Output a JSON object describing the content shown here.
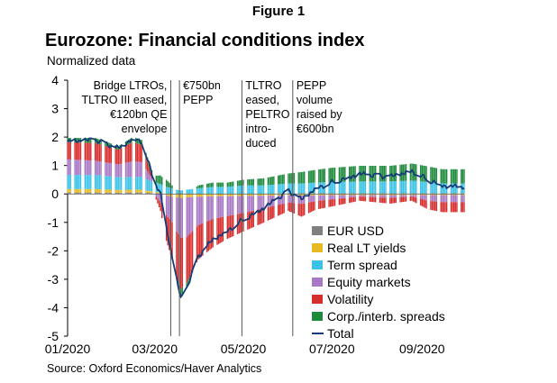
{
  "figure_label": "Figure 1",
  "title": "Eurozone: Financial conditions index",
  "unit_label": "Normalized data",
  "source": "Source: Oxford Economics/Haver Analytics",
  "chart_data": {
    "type": "bar",
    "stacked": true,
    "title": "Eurozone: Financial conditions index",
    "ylabel": "Normalized data",
    "ylim": [
      -5,
      4
    ],
    "yticks": [
      -5,
      -4,
      -3,
      -2,
      -1,
      0,
      1,
      2,
      3,
      4
    ],
    "xlim": [
      "2020-01-01",
      "2020-09-30"
    ],
    "xticks": [
      {
        "date": "2020-01-01",
        "label": "01/2020"
      },
      {
        "date": "2020-03-01",
        "label": "03/2020"
      },
      {
        "date": "2020-05-01",
        "label": "05/2020"
      },
      {
        "date": "2020-07-01",
        "label": "07/2020"
      },
      {
        "date": "2020-09-01",
        "label": "09/2020"
      }
    ],
    "legend_position": "bottom-right",
    "annotations": [
      {
        "date": "2020-03-12",
        "lines": [
          "Bridge LTROs,",
          "TLTRO III  eased,",
          "€120bn QE",
          "envelope"
        ],
        "align": "right"
      },
      {
        "date": "2020-03-18",
        "lines": [
          "€750bn",
          "PEPP"
        ],
        "align": "left"
      },
      {
        "date": "2020-04-30",
        "lines": [
          "TLTRO",
          "eased,",
          "PELTRO",
          "intro-",
          "duced"
        ],
        "align": "left"
      },
      {
        "date": "2020-06-04",
        "lines": [
          "PEPP",
          "volume",
          "raised by",
          "€600bn"
        ],
        "align": "left"
      }
    ],
    "components": [
      {
        "name": "EUR USD",
        "color": "#7f7f7f"
      },
      {
        "name": "Real LT yields",
        "color": "#e8b820"
      },
      {
        "name": "Term spread",
        "color": "#3cc2e6"
      },
      {
        "name": "Equity markets",
        "color": "#a778c4"
      },
      {
        "name": "Volatility",
        "color": "#d62d2d"
      },
      {
        "name": "Corp./interb. spreads",
        "color": "#1e8a3c"
      }
    ],
    "total": {
      "name": "Total",
      "color": "#163c78"
    },
    "anchors": [
      {
        "date": "2020-01-01",
        "eur": 0.05,
        "yield": 0.12,
        "term": 0.5,
        "equity": 0.55,
        "vol": 0.6,
        "spreads": 0.15,
        "total": 1.85
      },
      {
        "date": "2020-01-20",
        "eur": 0.05,
        "yield": 0.12,
        "term": 0.5,
        "equity": 0.5,
        "vol": 0.62,
        "spreads": 0.18,
        "total": 1.9
      },
      {
        "date": "2020-02-05",
        "eur": 0.04,
        "yield": 0.1,
        "term": 0.45,
        "equity": 0.45,
        "vol": 0.52,
        "spreads": 0.12,
        "total": 1.6
      },
      {
        "date": "2020-02-15",
        "eur": 0.05,
        "yield": 0.1,
        "term": 0.45,
        "equity": 0.55,
        "vol": 0.68,
        "spreads": 0.18,
        "total": 1.95
      },
      {
        "date": "2020-02-21",
        "eur": 0.05,
        "yield": 0.1,
        "term": 0.45,
        "equity": 0.52,
        "vol": 0.6,
        "spreads": 0.18,
        "total": 1.85
      },
      {
        "date": "2020-02-28",
        "eur": 0.03,
        "yield": 0.06,
        "term": 0.35,
        "equity": 0.1,
        "vol": 0.1,
        "spreads": 0.2,
        "total": 0.7
      },
      {
        "date": "2020-03-05",
        "eur": 0.02,
        "yield": 0.03,
        "term": 0.3,
        "equity": -0.3,
        "vol": -0.3,
        "spreads": 0.3,
        "total": 0.0
      },
      {
        "date": "2020-03-09",
        "eur": 0.0,
        "yield": -0.05,
        "term": 0.25,
        "equity": -0.7,
        "vol": -0.9,
        "spreads": 0.25,
        "total": -1.2
      },
      {
        "date": "2020-03-13",
        "eur": 0.0,
        "yield": -0.1,
        "term": 0.2,
        "equity": -0.9,
        "vol": -1.3,
        "spreads": 0.1,
        "total": -2.2
      },
      {
        "date": "2020-03-16",
        "eur": 0.0,
        "yield": -0.12,
        "term": 0.15,
        "equity": -1.2,
        "vol": -1.6,
        "spreads": 0.0,
        "total": -3.0
      },
      {
        "date": "2020-03-19",
        "eur": 0.0,
        "yield": -0.14,
        "term": 0.12,
        "equity": -1.4,
        "vol": -1.8,
        "spreads": -0.3,
        "total": -3.7
      },
      {
        "date": "2020-03-23",
        "eur": 0.0,
        "yield": -0.12,
        "term": 0.15,
        "equity": -1.4,
        "vol": -1.6,
        "spreads": -0.2,
        "total": -3.3
      },
      {
        "date": "2020-03-31",
        "eur": 0.0,
        "yield": -0.1,
        "term": 0.2,
        "equity": -1.0,
        "vol": -1.2,
        "spreads": 0.1,
        "total": -2.2
      },
      {
        "date": "2020-04-10",
        "eur": 0.0,
        "yield": -0.08,
        "term": 0.25,
        "equity": -0.8,
        "vol": -1.0,
        "spreads": 0.15,
        "total": -1.6
      },
      {
        "date": "2020-04-20",
        "eur": 0.0,
        "yield": -0.08,
        "term": 0.25,
        "equity": -0.7,
        "vol": -0.8,
        "spreads": 0.15,
        "total": -1.3
      },
      {
        "date": "2020-05-01",
        "eur": 0.0,
        "yield": -0.07,
        "term": 0.3,
        "equity": -0.6,
        "vol": -0.65,
        "spreads": 0.2,
        "total": -0.9
      },
      {
        "date": "2020-05-15",
        "eur": 0.0,
        "yield": -0.06,
        "term": 0.3,
        "equity": -0.45,
        "vol": -0.5,
        "spreads": 0.25,
        "total": -0.5
      },
      {
        "date": "2020-06-01",
        "eur": 0.02,
        "yield": -0.05,
        "term": 0.35,
        "equity": -0.25,
        "vol": -0.3,
        "spreads": 0.35,
        "total": 0.1
      },
      {
        "date": "2020-06-10",
        "eur": 0.02,
        "yield": -0.05,
        "term": 0.35,
        "equity": -0.3,
        "vol": -0.45,
        "spreads": 0.4,
        "total": -0.2
      },
      {
        "date": "2020-06-20",
        "eur": 0.02,
        "yield": -0.05,
        "term": 0.38,
        "equity": -0.2,
        "vol": -0.3,
        "spreads": 0.45,
        "total": 0.2
      },
      {
        "date": "2020-07-01",
        "eur": 0.02,
        "yield": -0.04,
        "term": 0.4,
        "equity": -0.15,
        "vol": -0.25,
        "spreads": 0.5,
        "total": 0.4
      },
      {
        "date": "2020-07-20",
        "eur": 0.02,
        "yield": -0.04,
        "term": 0.42,
        "equity": -0.05,
        "vol": -0.15,
        "spreads": 0.55,
        "total": 0.7
      },
      {
        "date": "2020-08-10",
        "eur": 0.02,
        "yield": -0.04,
        "term": 0.42,
        "equity": -0.1,
        "vol": -0.2,
        "spreads": 0.55,
        "total": 0.6
      },
      {
        "date": "2020-08-25",
        "eur": 0.02,
        "yield": -0.04,
        "term": 0.45,
        "equity": -0.05,
        "vol": -0.15,
        "spreads": 0.6,
        "total": 0.8
      },
      {
        "date": "2020-09-05",
        "eur": 0.02,
        "yield": -0.04,
        "term": 0.4,
        "equity": -0.2,
        "vol": -0.3,
        "spreads": 0.55,
        "total": 0.5
      },
      {
        "date": "2020-09-15",
        "eur": 0.02,
        "yield": -0.04,
        "term": 0.35,
        "equity": -0.25,
        "vol": -0.35,
        "spreads": 0.5,
        "total": 0.3
      },
      {
        "date": "2020-09-25",
        "eur": 0.02,
        "yield": -0.04,
        "term": 0.35,
        "equity": -0.25,
        "vol": -0.35,
        "spreads": 0.5,
        "total": 0.25
      }
    ]
  }
}
